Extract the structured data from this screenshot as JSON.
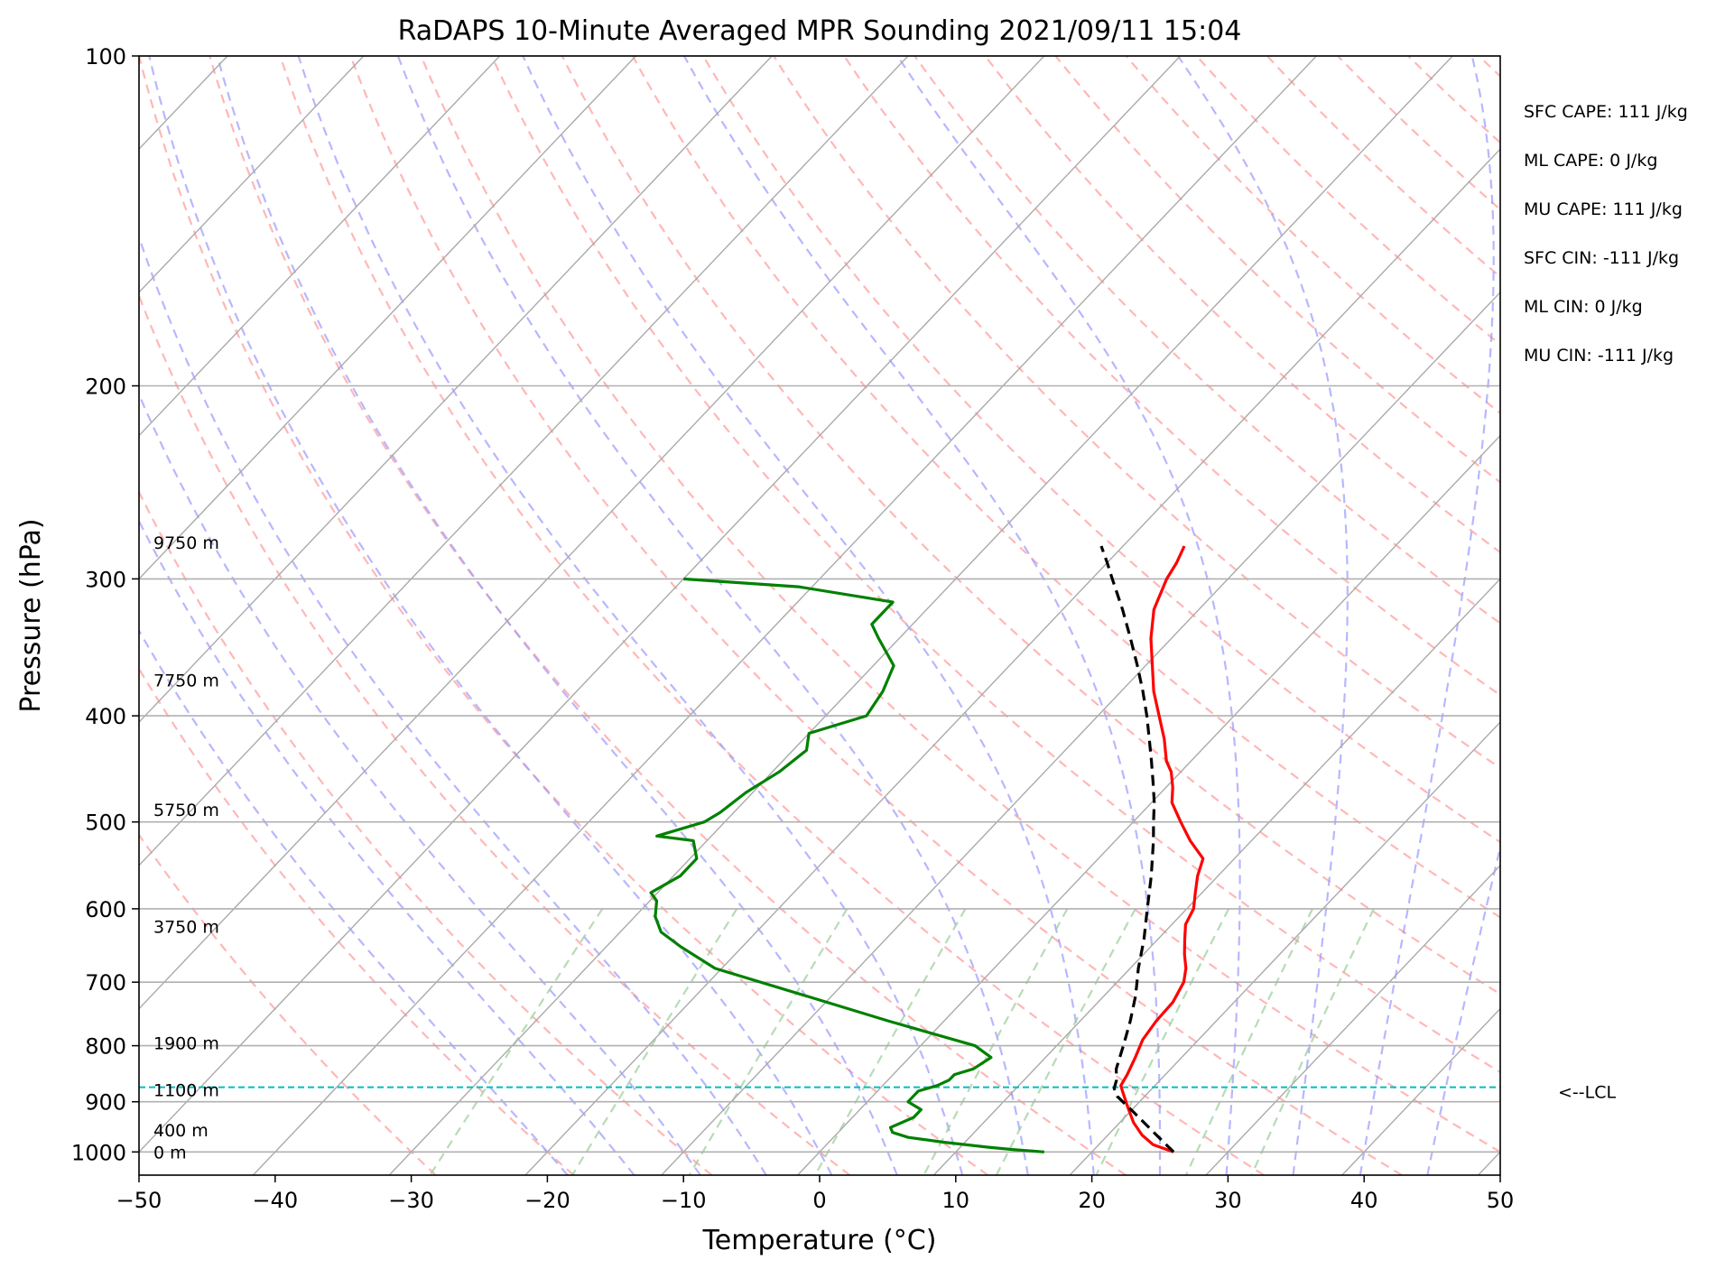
{
  "chart_data": {
    "type": "line",
    "diagram": "skew-T log-p",
    "title": "RaDAPS 10-Minute Averaged MPR Sounding 2021/09/11 15:04",
    "xlabel": "Temperature (°C)",
    "ylabel": "Pressure (hPa)",
    "xlim": [
      -50,
      50
    ],
    "ylim": [
      1050,
      100
    ],
    "y_scale": "log",
    "x_ticks": [
      -50,
      -40,
      -30,
      -20,
      -10,
      0,
      10,
      20,
      30,
      40,
      50
    ],
    "x_tick_labels": [
      "−50",
      "−40",
      "−30",
      "−20",
      "−10",
      "0",
      "10",
      "20",
      "30",
      "40",
      "50"
    ],
    "y_ticks": [
      100,
      200,
      300,
      400,
      500,
      600,
      700,
      800,
      900,
      1000
    ],
    "y_tick_labels": [
      "100",
      "200",
      "300",
      "400",
      "500",
      "600",
      "700",
      "800",
      "900",
      "1000"
    ],
    "grid": true,
    "series": [
      {
        "color": "#ff0000",
        "style": "solid",
        "pressure": [
          1000,
          985,
          965,
          940,
          910,
          880,
          870,
          850,
          820,
          790,
          760,
          730,
          700,
          680,
          660,
          640,
          620,
          600,
          580,
          560,
          540,
          520,
          500,
          480,
          465,
          450,
          440,
          420,
          400,
          380,
          360,
          340,
          320,
          300,
          290,
          280
        ],
        "temperature": [
          26.0,
          24.0,
          22.5,
          21.0,
          19.5,
          18.0,
          17.5,
          17.2,
          16.6,
          15.9,
          15.6,
          15.5,
          14.9,
          14.1,
          13.0,
          12.0,
          11.0,
          10.5,
          9.5,
          8.5,
          7.7,
          5.5,
          3.5,
          1.5,
          0.5,
          -0.7,
          -1.8,
          -3.5,
          -5.5,
          -7.6,
          -9.5,
          -11.5,
          -13.3,
          -14.5,
          -14.9,
          -15.5
        ]
      },
      {
        "color": "#008000",
        "style": "solid",
        "pressure": [
          1000,
          998,
          995,
          990,
          980,
          970,
          960,
          950,
          930,
          915,
          900,
          890,
          880,
          870,
          860,
          850,
          840,
          820,
          810,
          800,
          760,
          720,
          680,
          650,
          630,
          610,
          590,
          580,
          570,
          560,
          540,
          520,
          515,
          500,
          490,
          470,
          450,
          430,
          415,
          400,
          380,
          360,
          340,
          330,
          315,
          305,
          300
        ],
        "temperature": [
          16.5,
          15.5,
          14.0,
          12.0,
          8.5,
          5.5,
          4.0,
          3.5,
          4.5,
          4.5,
          3.0,
          3.0,
          3.0,
          4.0,
          4.5,
          4.5,
          5.5,
          6.0,
          5.0,
          4.0,
          -4.0,
          -12.0,
          -20.5,
          -24.5,
          -27.0,
          -28.5,
          -29.5,
          -30.5,
          -30.0,
          -29.5,
          -29.5,
          -31.0,
          -34.0,
          -31.5,
          -31.0,
          -30.5,
          -29.5,
          -29.0,
          -30.0,
          -27.0,
          -27.5,
          -28.5,
          -31.5,
          -33.0,
          -33.0,
          -41.0,
          -50.0
        ]
      },
      {
        "color": "#000000",
        "style": "dashed",
        "pressure": [
          1000,
          960,
          920,
          890,
          875,
          860,
          840,
          800,
          760,
          720,
          680,
          640,
          600,
          560,
          520,
          500,
          480,
          460,
          440,
          420,
          400,
          380,
          360,
          340,
          320,
          300,
          290,
          280
        ],
        "temperature": [
          26.0,
          23.2,
          20.3,
          18.0,
          17.2,
          16.8,
          16.0,
          14.9,
          13.7,
          12.3,
          10.6,
          9.0,
          7.1,
          5.1,
          2.8,
          1.5,
          0.2,
          -1.3,
          -2.9,
          -4.6,
          -6.4,
          -8.4,
          -10.6,
          -13.0,
          -15.6,
          -18.5,
          -20.0,
          -21.6
        ]
      }
    ],
    "height_labels": [
      {
        "pressure": 1000,
        "label": "0 m"
      },
      {
        "pressure": 955,
        "label": "400 m"
      },
      {
        "pressure": 878,
        "label": "1100 m"
      },
      {
        "pressure": 795,
        "label": "1900 m"
      },
      {
        "pressure": 623,
        "label": "3750 m"
      },
      {
        "pressure": 487,
        "label": "5750 m"
      },
      {
        "pressure": 371,
        "label": "7750 m"
      },
      {
        "pressure": 278,
        "label": "9750 m"
      }
    ],
    "lcl": {
      "pressure": 873,
      "label": "<--LCL",
      "color": "#00bfbf"
    },
    "annotations": [
      "SFC CAPE: 111 J/kg",
      "ML CAPE: 0 J/kg",
      "MU CAPE: 111 J/kg",
      "SFC CIN: -111 J/kg",
      "ML CIN: 0 J/kg",
      "MU CIN: -111 J/kg"
    ],
    "colors": {
      "isotherm": "#aaaaaa",
      "dry_adiabat": "#ff9999",
      "moist_adiabat": "#9999ff",
      "mixing_ratio": "#99cc99"
    }
  }
}
